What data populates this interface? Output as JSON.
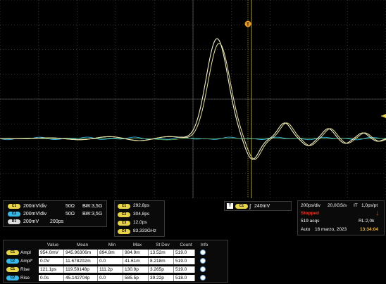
{
  "scope": {
    "trigger_marker": "T",
    "ref_marker": "R"
  },
  "channels": [
    {
      "badge": "C1",
      "color": "#e8d44a",
      "scale": "200mV/div",
      "imp": "50Ω",
      "bw": "B̵W:3,5G"
    },
    {
      "badge": "C2",
      "color": "#39b7e6",
      "scale": "200mV/div",
      "imp": "50Ω",
      "bw": "B̵W:3,5G"
    },
    {
      "badge": "R1",
      "color": "#dddddd",
      "scale": "200mV",
      "imp": "200ps",
      "bw": ""
    }
  ],
  "cursor_readouts": [
    {
      "badge": "C1",
      "value": "292,8ps"
    },
    {
      "badge": "C2",
      "value": "304,8ps"
    },
    {
      "badge": "C3",
      "value": "12,0ps"
    },
    {
      "badge": "C4",
      "value": "83,333GHz"
    }
  ],
  "trigger": {
    "badge": "T",
    "channel_badge": "C1",
    "slope": "∫",
    "level": "240mV"
  },
  "acquisition": {
    "timebase": "200ps/div",
    "sample_rate": "20,0GS/s",
    "mode": "IT",
    "resolution": "1,0ps/pt",
    "state": "Stopped",
    "acqs": "519 acqs",
    "record_length": "RL:2,0k",
    "trigger_mode": "Auto",
    "date": "16 marzo, 2023",
    "time": "13:34:04"
  },
  "measurements": {
    "headers": [
      "Value",
      "Mean",
      "Min",
      "Max",
      "St Dev",
      "Count",
      "Info"
    ],
    "rows": [
      {
        "badge": "C1",
        "color": "#e8d44a",
        "name": "Ampl",
        "value": "954.0mV",
        "mean": "945.96306m",
        "min": "894.8m",
        "max": "984.9m",
        "stdev": "13.52m",
        "count": "519.0"
      },
      {
        "badge": "C2",
        "color": "#39b7e6",
        "name": "Ampl*",
        "value": "0.0V",
        "mean": "11.678202m",
        "min": "0.0",
        "max": "41.61m",
        "stdev": "8.218m",
        "count": "519.0"
      },
      {
        "badge": "C1",
        "color": "#e8d44a",
        "name": "Rise",
        "value": "121.1ps",
        "mean": "119.59148p",
        "min": "111.2p",
        "max": "130.9p",
        "stdev": "3.265p",
        "count": "519.0"
      },
      {
        "badge": "C2",
        "color": "#39b7e6",
        "name": "Rise",
        "value": "0.0s",
        "mean": "45.142704p",
        "min": "0.0",
        "max": "585.5p",
        "stdev": "39.22p",
        "count": "518.0"
      }
    ]
  }
}
